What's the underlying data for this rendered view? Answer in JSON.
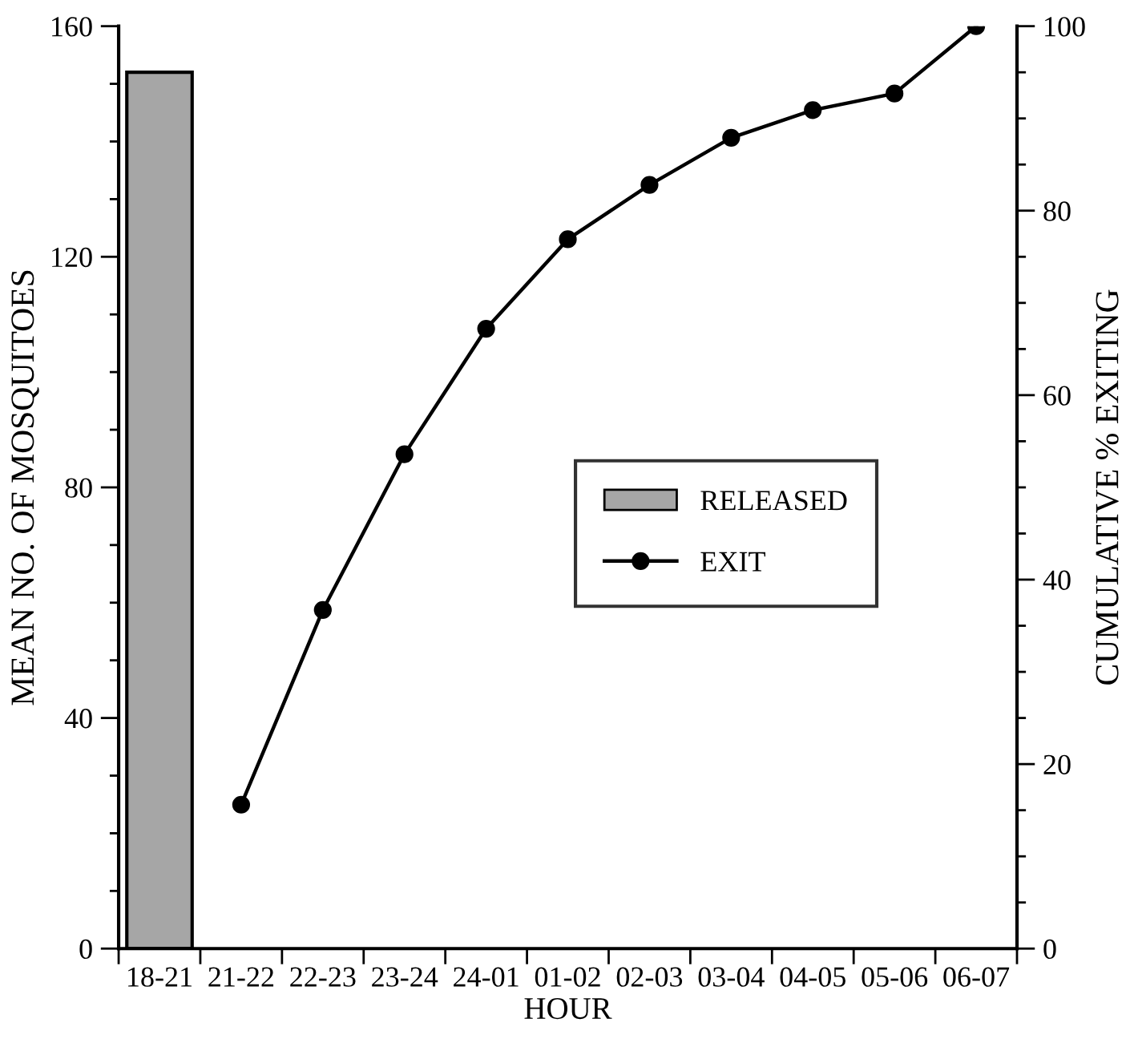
{
  "chart_data": {
    "type": "bar",
    "xlabel": "HOUR",
    "ylabel": "MEAN NO. OF MOSQUITOES",
    "y2label": "CUMULATIVE % EXITING",
    "categories": [
      "18-21",
      "21-22",
      "22-23",
      "23-24",
      "24-01",
      "01-02",
      "02-03",
      "03-04",
      "04-05",
      "05-06",
      "06-07"
    ],
    "series": [
      {
        "name": "RELEASED",
        "color": "#a6a6a6",
        "values": [
          152,
          null,
          null,
          null,
          null,
          null,
          null,
          null,
          null,
          null,
          null
        ]
      },
      {
        "name": "EXIT",
        "type": "line",
        "axis": "y2",
        "color": "#000000",
        "marker": "circle",
        "line_style": "solid",
        "values": [
          null,
          15.6,
          36.7,
          53.6,
          67.2,
          76.9,
          82.8,
          87.9,
          90.9,
          92.7,
          100
        ]
      }
    ],
    "ylim": [
      0,
      160
    ],
    "yticks": [
      0,
      {
        "value": 10,
        "label": null
      },
      {
        "value": 20,
        "label": null
      },
      {
        "value": 30,
        "label": null
      },
      40,
      {
        "value": 50,
        "label": null
      },
      {
        "value": 60,
        "label": null
      },
      {
        "value": 70,
        "label": null
      },
      80,
      {
        "value": 90,
        "label": null
      },
      {
        "value": 100,
        "label": null
      },
      {
        "value": 110,
        "label": null
      },
      120,
      {
        "value": 130,
        "label": null
      },
      {
        "value": 140,
        "label": null
      },
      {
        "value": 150,
        "label": null
      },
      160
    ],
    "y2lim": [
      0,
      100
    ],
    "y2ticks": [
      0,
      {
        "value": 5,
        "label": null
      },
      {
        "value": 10,
        "label": null
      },
      {
        "value": 15,
        "label": null
      },
      20,
      {
        "value": 25,
        "label": null
      },
      {
        "value": 30,
        "label": null
      },
      {
        "value": 35,
        "label": null
      },
      40,
      {
        "value": 45,
        "label": null
      },
      {
        "value": 50,
        "label": null
      },
      {
        "value": 55,
        "label": null
      },
      60,
      {
        "value": 65,
        "label": null
      },
      {
        "value": 70,
        "label": null
      },
      {
        "value": 75,
        "label": null
      },
      80,
      {
        "value": 85,
        "label": null
      },
      {
        "value": 90,
        "label": null
      },
      {
        "value": 95,
        "label": null
      },
      100
    ],
    "grid": false,
    "legend": "right"
  }
}
